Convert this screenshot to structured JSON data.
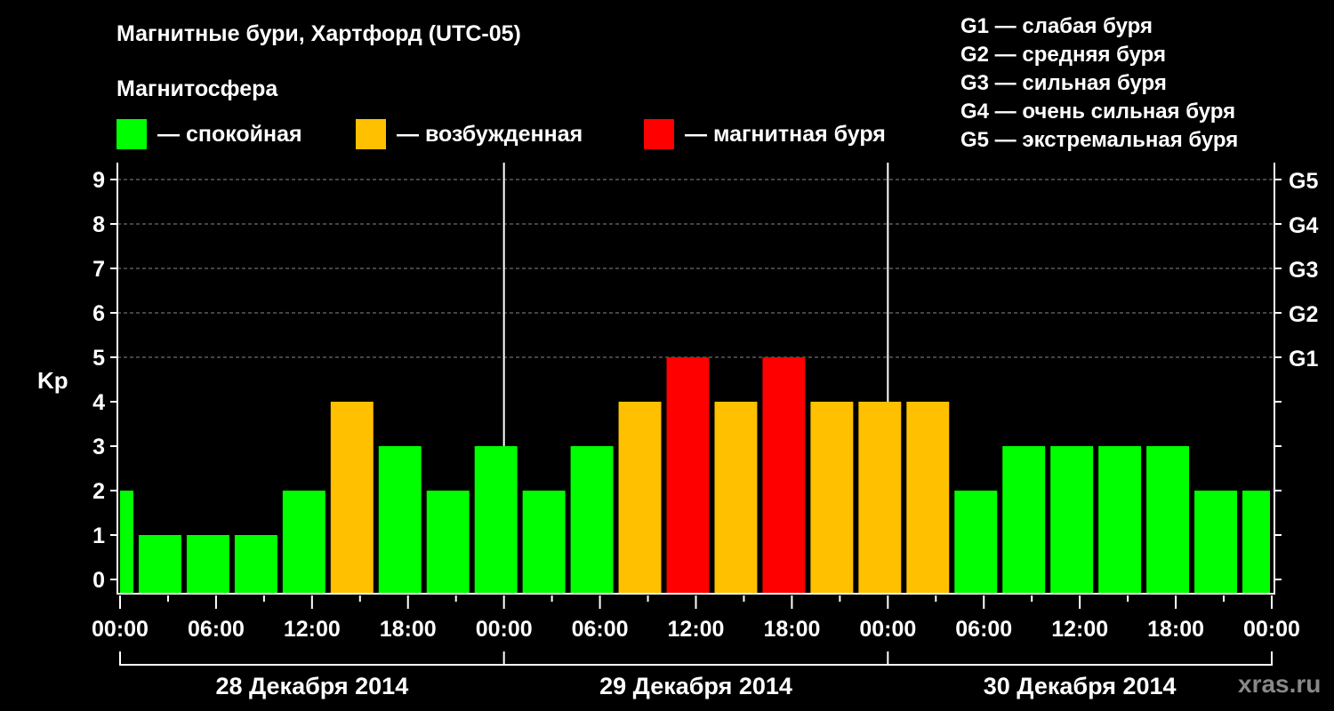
{
  "chart_data": {
    "type": "bar",
    "title": "Магнитные бури, Хартфорд (UTC-05)",
    "ylabel": "Kp",
    "ylim": [
      0,
      9
    ],
    "yticks": [
      "0",
      "1",
      "2",
      "3",
      "4",
      "5",
      "6",
      "7",
      "8",
      "9"
    ],
    "right_ticks": [
      {
        "kp": 5,
        "label": "G1"
      },
      {
        "kp": 6,
        "label": "G2"
      },
      {
        "kp": 7,
        "label": "G3"
      },
      {
        "kp": 8,
        "label": "G4"
      },
      {
        "kp": 9,
        "label": "G5"
      }
    ],
    "xlim_hours": [
      0,
      72
    ],
    "xtick_labels": [
      "00:00",
      "06:00",
      "12:00",
      "18:00",
      "00:00",
      "06:00",
      "12:00",
      "18:00",
      "00:00",
      "06:00",
      "12:00",
      "18:00",
      "00:00"
    ],
    "days": [
      "28 Декабря 2014",
      "29 Декабря 2014",
      "30 Декабря 2014"
    ],
    "bars": [
      {
        "start": 0,
        "end": 1,
        "kp": 2
      },
      {
        "start": 1,
        "end": 4,
        "kp": 1
      },
      {
        "start": 4,
        "end": 7,
        "kp": 1
      },
      {
        "start": 7,
        "end": 10,
        "kp": 1
      },
      {
        "start": 10,
        "end": 13,
        "kp": 2
      },
      {
        "start": 13,
        "end": 16,
        "kp": 4
      },
      {
        "start": 16,
        "end": 19,
        "kp": 3
      },
      {
        "start": 19,
        "end": 22,
        "kp": 2
      },
      {
        "start": 22,
        "end": 25,
        "kp": 3
      },
      {
        "start": 25,
        "end": 28,
        "kp": 2
      },
      {
        "start": 28,
        "end": 31,
        "kp": 3
      },
      {
        "start": 31,
        "end": 34,
        "kp": 4
      },
      {
        "start": 34,
        "end": 37,
        "kp": 5
      },
      {
        "start": 37,
        "end": 40,
        "kp": 4
      },
      {
        "start": 40,
        "end": 43,
        "kp": 5
      },
      {
        "start": 43,
        "end": 46,
        "kp": 4
      },
      {
        "start": 46,
        "end": 49,
        "kp": 4
      },
      {
        "start": 49,
        "end": 52,
        "kp": 4
      },
      {
        "start": 52,
        "end": 55,
        "kp": 2
      },
      {
        "start": 55,
        "end": 58,
        "kp": 3
      },
      {
        "start": 58,
        "end": 61,
        "kp": 3
      },
      {
        "start": 61,
        "end": 64,
        "kp": 3
      },
      {
        "start": 64,
        "end": 67,
        "kp": 3
      },
      {
        "start": 67,
        "end": 70,
        "kp": 2
      },
      {
        "start": 70,
        "end": 72,
        "kp": 2
      }
    ],
    "colors": {
      "calm": "#00ff00",
      "active": "#ffc000",
      "storm": "#ff0000"
    }
  },
  "legend": {
    "heading": "Магнитосфера",
    "calm": "— спокойная",
    "active": "— возбужденная",
    "storm": "— магнитная буря"
  },
  "g_scale": [
    "G1 — слабая буря",
    "G2 — средняя буря",
    "G3 — сильная буря",
    "G4 — очень сильная буря",
    "G5 — экстремальная буря"
  ],
  "watermark": "xras.ru"
}
